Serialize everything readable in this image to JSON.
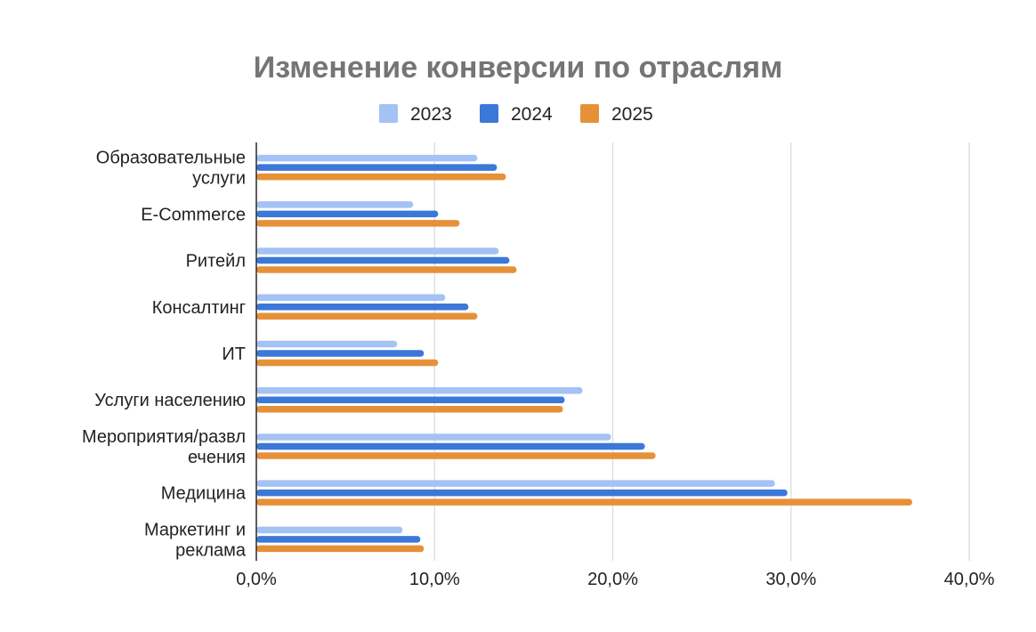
{
  "chart_data": {
    "type": "bar",
    "orientation": "horizontal",
    "title": "Изменение конверсии по отраслям",
    "xlabel": "",
    "ylabel": "",
    "xlim": [
      0,
      40
    ],
    "x_ticks": [
      "0,0%",
      "10,0%",
      "20,0%",
      "30,0%",
      "40,0%"
    ],
    "grid": true,
    "legend_position": "top-center",
    "categories": [
      "Образовательные услуги",
      "E-Commerce",
      "Ритейл",
      "Консалтинг",
      "ИТ",
      "Услуги населению",
      "Мероприятия/развл ечения",
      "Медицина",
      "Маркетинг и реклама"
    ],
    "series": [
      {
        "name": "2023",
        "color": "#a4c2f4",
        "values": [
          12.4,
          8.8,
          13.6,
          10.6,
          7.9,
          18.3,
          19.9,
          29.1,
          8.2
        ]
      },
      {
        "name": "2024",
        "color": "#3c78d8",
        "values": [
          13.5,
          10.2,
          14.2,
          11.9,
          9.4,
          17.3,
          21.8,
          29.8,
          9.2
        ]
      },
      {
        "name": "2025",
        "color": "#e69138",
        "values": [
          14.0,
          11.4,
          14.6,
          12.4,
          10.2,
          17.2,
          22.4,
          36.8,
          9.4
        ]
      }
    ]
  }
}
